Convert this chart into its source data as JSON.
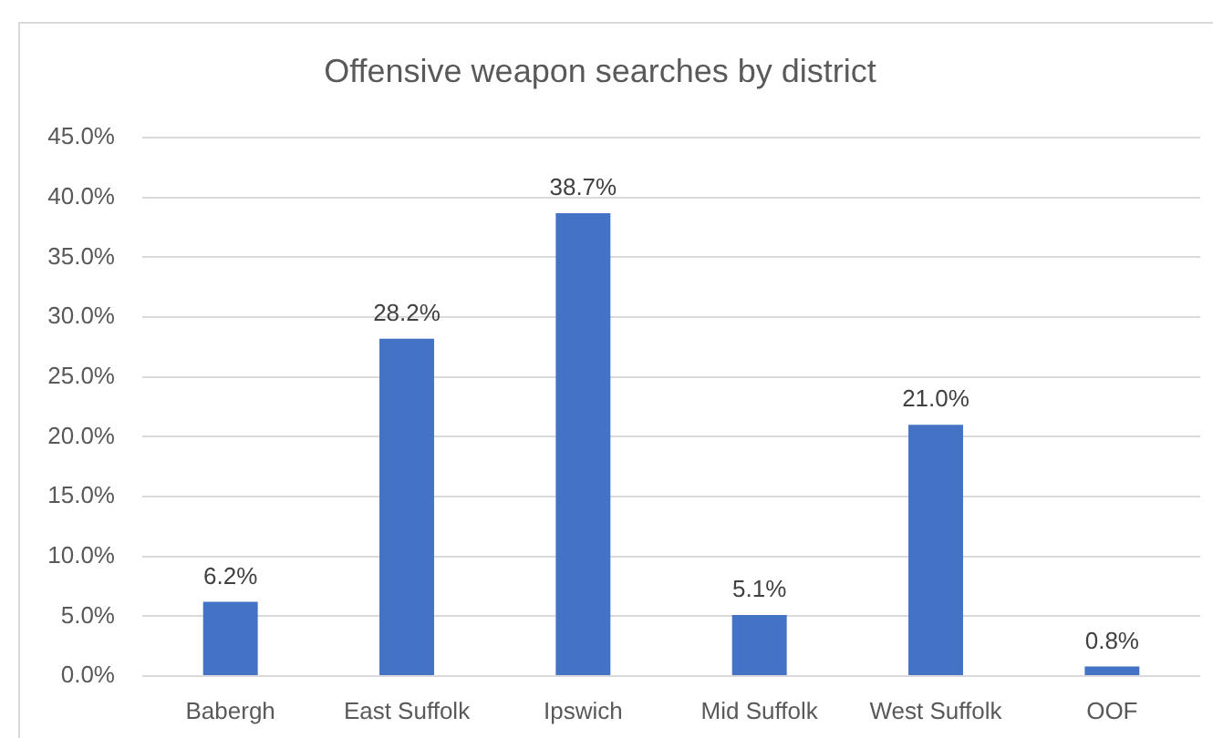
{
  "chart_data": {
    "type": "bar",
    "title": "Offensive weapon searches by district",
    "categories": [
      "Babergh",
      "East Suffolk",
      "Ipswich",
      "Mid Suffolk",
      "West Suffolk",
      "OOF"
    ],
    "values": [
      6.2,
      28.2,
      38.7,
      5.1,
      21.0,
      0.8
    ],
    "value_labels": [
      "6.2%",
      "28.2%",
      "38.7%",
      "5.1%",
      "21.0%",
      "0.8%"
    ],
    "color": "#4472c4",
    "ylim": [
      0,
      45
    ],
    "yticks": [
      {
        "value": 0,
        "label": "0.0%"
      },
      {
        "value": 5,
        "label": "5.0%"
      },
      {
        "value": 10,
        "label": "10.0%"
      },
      {
        "value": 15,
        "label": "15.0%"
      },
      {
        "value": 20,
        "label": "20.0%"
      },
      {
        "value": 25,
        "label": "25.0%"
      },
      {
        "value": 30,
        "label": "30.0%"
      },
      {
        "value": 35,
        "label": "35.0%"
      },
      {
        "value": 40,
        "label": "40.0%"
      },
      {
        "value": 45,
        "label": "45.0%"
      }
    ],
    "grid": "y"
  }
}
